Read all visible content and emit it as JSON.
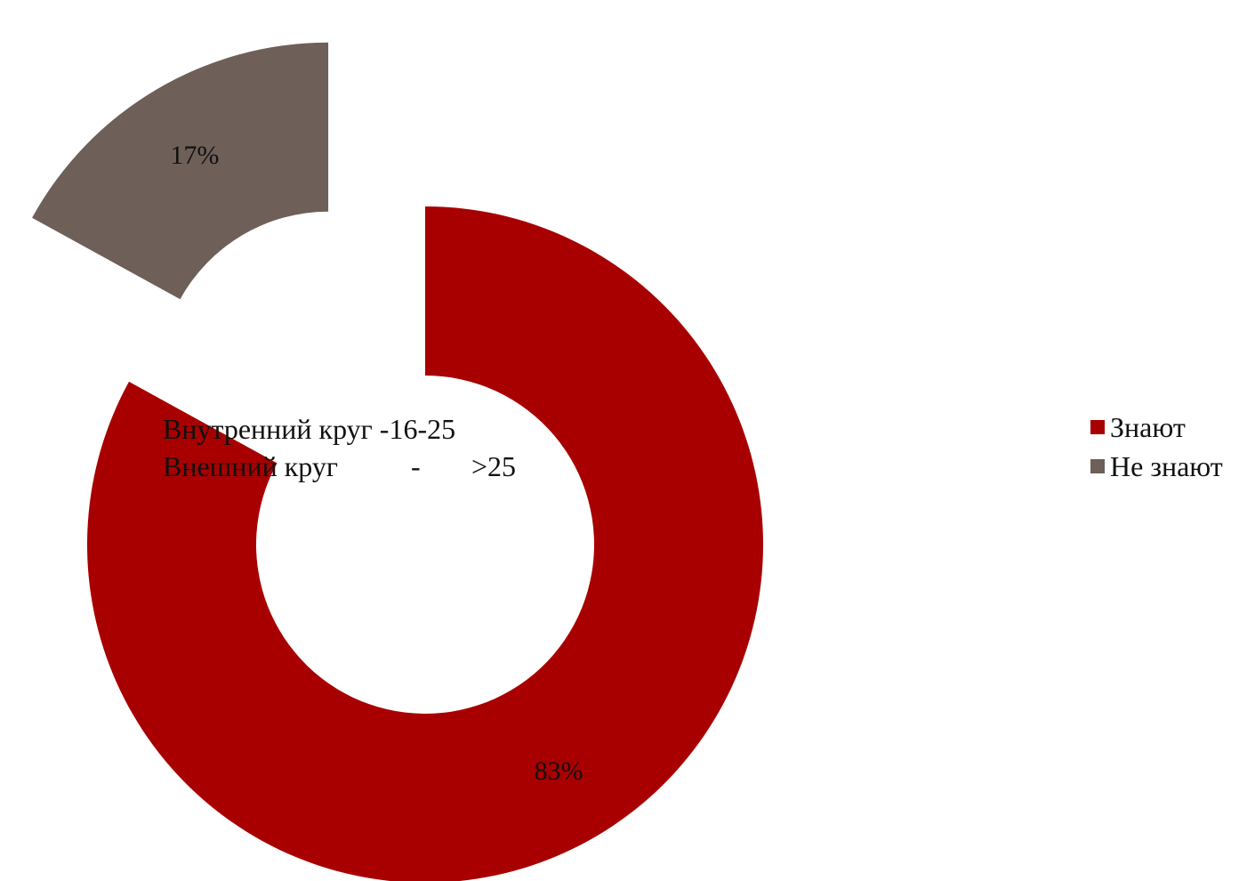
{
  "chart_data": {
    "type": "pie",
    "style": "doughnut, exploded",
    "categories": [
      "Знают",
      "Не знают"
    ],
    "values": [
      83,
      17
    ],
    "data_labels": [
      "83%",
      "17%"
    ],
    "colors": [
      "#a80000",
      "#6e5f58"
    ],
    "legend": {
      "position": "right",
      "items": [
        {
          "label": "Знают",
          "color": "#a80000"
        },
        {
          "label": "Не знают",
          "color": "#6e5f58"
        }
      ]
    },
    "annotation": {
      "line1": "Внутренний круг -16-25",
      "line2_left": "Внешний круг",
      "line2_dash": "-",
      "line2_right": ">25"
    }
  }
}
